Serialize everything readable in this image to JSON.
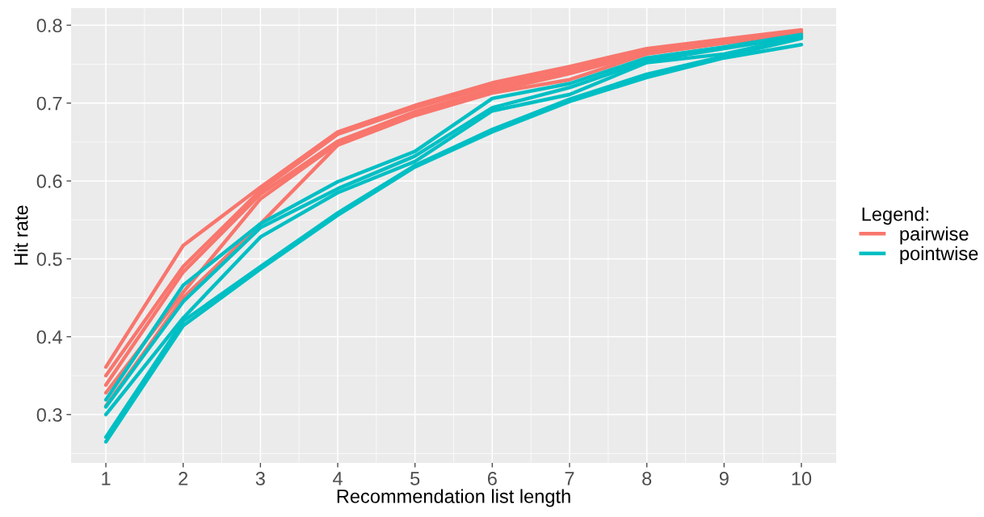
{
  "chart_data": {
    "type": "line",
    "xlabel": "Recommendation list length",
    "ylabel": "Hit rate",
    "legend_title": "Legend:",
    "legend": "right",
    "grid": true,
    "marker": "none",
    "line_style": "solid",
    "x": [
      1,
      2,
      3,
      4,
      5,
      6,
      7,
      8,
      9,
      10
    ],
    "xlim": [
      0.55,
      10.45
    ],
    "xticks": [
      1,
      2,
      3,
      4,
      5,
      6,
      7,
      8,
      9,
      10
    ],
    "ylim": [
      0.238,
      0.822
    ],
    "yticks": [
      0.3,
      0.4,
      0.5,
      0.6,
      0.7,
      0.8
    ],
    "series": [
      {
        "name": "pairwise",
        "color": "#f8766d",
        "values": [
          0.361,
          0.517,
          0.592,
          0.663,
          0.697,
          0.726,
          0.747,
          0.77,
          0.782,
          0.794
        ]
      },
      {
        "color": "#f8766d",
        "values": [
          0.35,
          0.49,
          0.588,
          0.66,
          0.694,
          0.722,
          0.745,
          0.768,
          0.78,
          0.792
        ]
      },
      {
        "color": "#f8766d",
        "values": [
          0.338,
          0.483,
          0.583,
          0.651,
          0.689,
          0.718,
          0.741,
          0.765,
          0.779,
          0.79
        ]
      },
      {
        "color": "#f8766d",
        "values": [
          0.328,
          0.457,
          0.577,
          0.648,
          0.686,
          0.715,
          0.738,
          0.764,
          0.777,
          0.789
        ]
      },
      {
        "color": "#f8766d",
        "values": [
          0.311,
          0.45,
          0.545,
          0.646,
          0.684,
          0.713,
          0.73,
          0.763,
          0.777,
          0.789
        ]
      },
      {
        "name": "pointwise",
        "color": "#00bfc4",
        "values": [
          0.319,
          0.466,
          0.545,
          0.599,
          0.638,
          0.706,
          0.725,
          0.758,
          0.772,
          0.788
        ]
      },
      {
        "color": "#00bfc4",
        "values": [
          0.31,
          0.445,
          0.54,
          0.59,
          0.632,
          0.694,
          0.72,
          0.754,
          0.77,
          0.786
        ]
      },
      {
        "color": "#00bfc4",
        "values": [
          0.3,
          0.424,
          0.528,
          0.585,
          0.625,
          0.69,
          0.711,
          0.752,
          0.763,
          0.785
        ]
      },
      {
        "color": "#00bfc4",
        "values": [
          0.271,
          0.42,
          0.49,
          0.559,
          0.62,
          0.666,
          0.705,
          0.737,
          0.76,
          0.783
        ]
      },
      {
        "color": "#00bfc4",
        "values": [
          0.265,
          0.414,
          0.487,
          0.556,
          0.618,
          0.663,
          0.702,
          0.733,
          0.758,
          0.775
        ]
      }
    ]
  }
}
